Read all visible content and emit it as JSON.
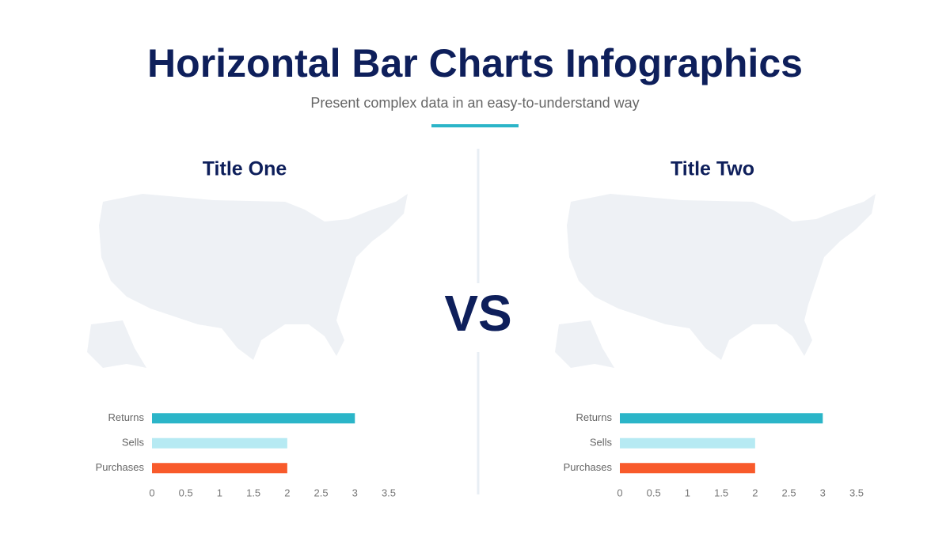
{
  "title": "Horizontal Bar Charts Infographics",
  "subtitle": "Present complex data in an easy-to-understand way",
  "vs_label": "VS",
  "chart_data": [
    {
      "type": "bar",
      "orientation": "horizontal",
      "title": "Title One",
      "categories": [
        "Returns",
        "Sells",
        "Purchases"
      ],
      "values": [
        3,
        2,
        2
      ],
      "colors": [
        "#2bb5c8",
        "#b6eaf3",
        "#f85a2b"
      ],
      "xlim": [
        0,
        3.5
      ],
      "xticks": [
        0,
        0.5,
        1,
        1.5,
        2,
        2.5,
        3,
        3.5
      ],
      "grid": false
    },
    {
      "type": "bar",
      "orientation": "horizontal",
      "title": "Title Two",
      "categories": [
        "Returns",
        "Sells",
        "Purchases"
      ],
      "values": [
        3,
        2,
        2
      ],
      "colors": [
        "#2bb5c8",
        "#b6eaf3",
        "#f85a2b"
      ],
      "xlim": [
        0,
        3.5
      ],
      "xticks": [
        0,
        0.5,
        1,
        1.5,
        2,
        2.5,
        3,
        3.5
      ],
      "grid": false
    }
  ]
}
